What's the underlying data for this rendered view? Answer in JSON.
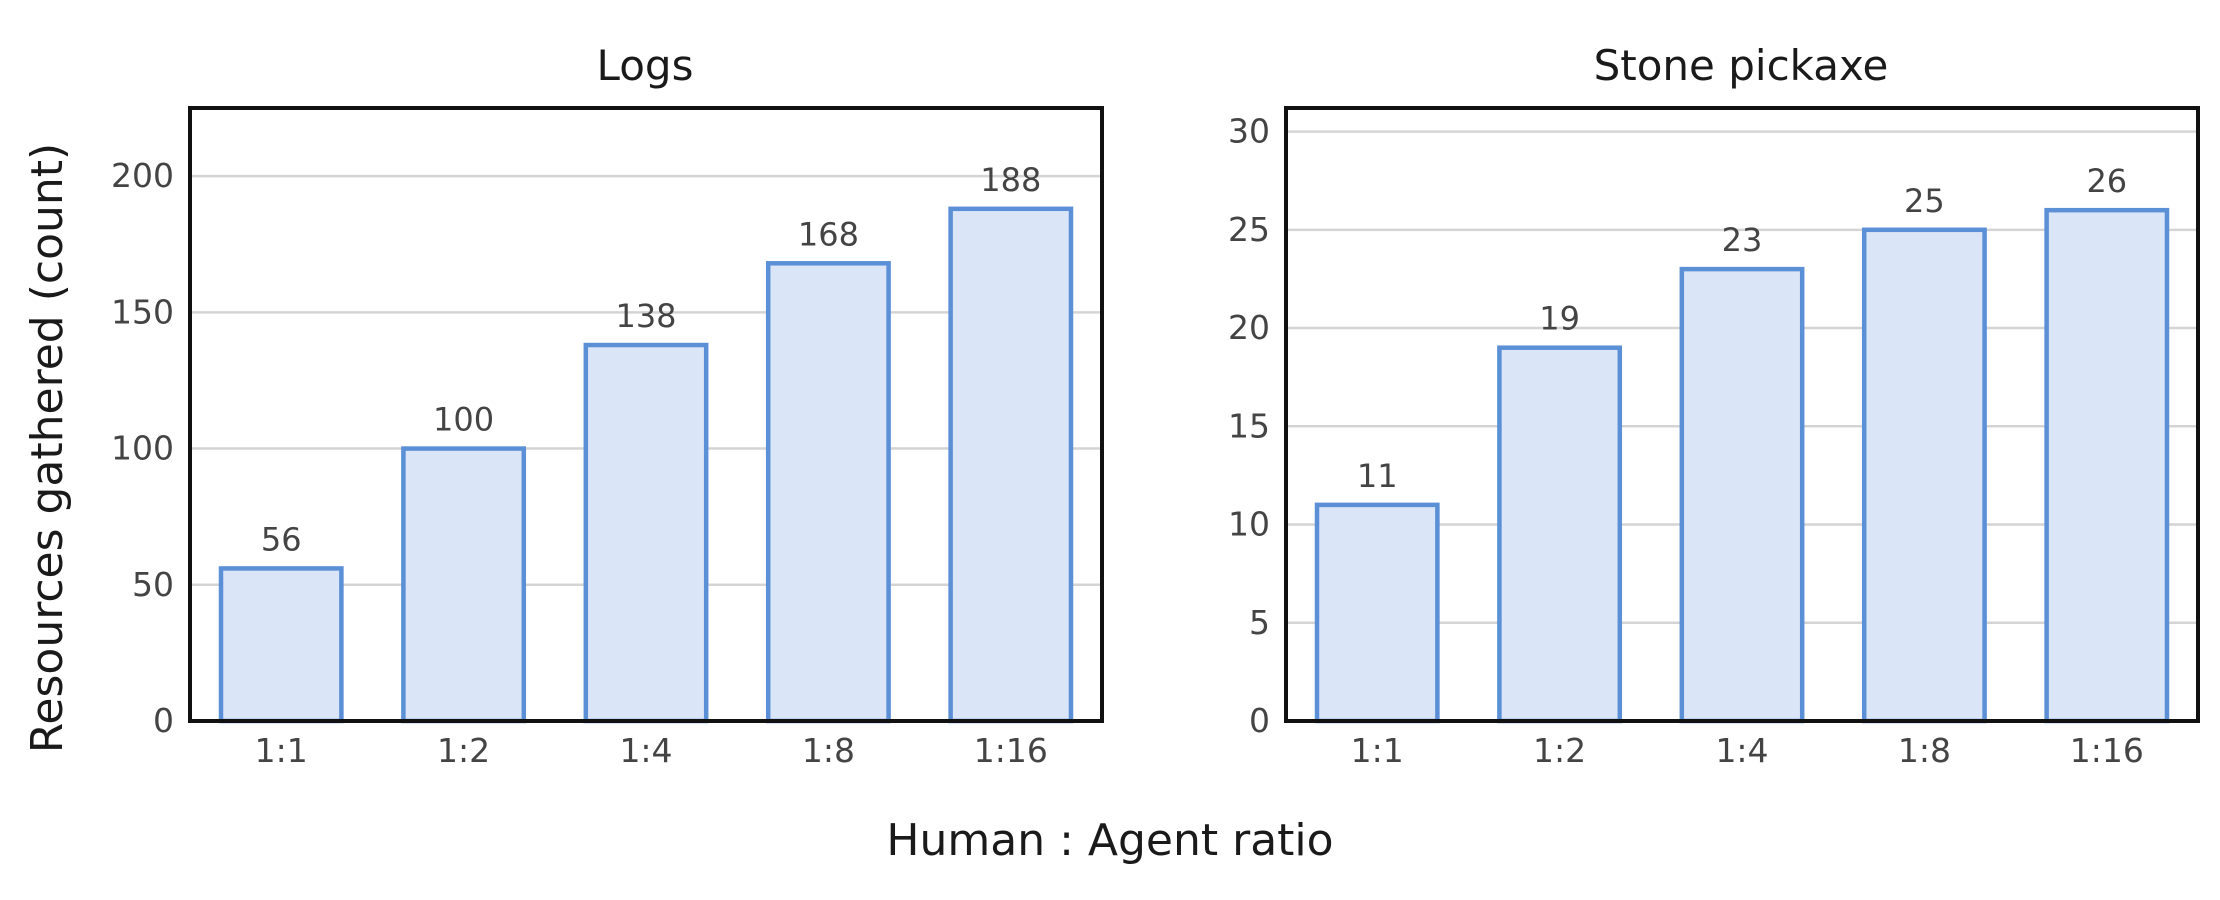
{
  "figure": {
    "ylabel": "Resources gathered (count)",
    "xlabel": "Human : Agent ratio",
    "bar_fill": "#dbe5f8",
    "bar_stroke": "#5b8fd6",
    "grid_color": "#d4d4d4"
  },
  "chart_data": [
    {
      "type": "bar",
      "title": "Logs",
      "categories": [
        "1:1",
        "1:2",
        "1:4",
        "1:8",
        "1:16"
      ],
      "values": [
        56,
        100,
        138,
        168,
        188
      ],
      "ylim": [
        0,
        225
      ],
      "yticks": [
        0,
        50,
        100,
        150,
        200
      ],
      "grid": true
    },
    {
      "type": "bar",
      "title": "Stone pickaxe",
      "categories": [
        "1:1",
        "1:2",
        "1:4",
        "1:8",
        "1:16"
      ],
      "values": [
        11,
        19,
        23,
        25,
        26
      ],
      "ylim": [
        0,
        31.2
      ],
      "yticks": [
        0,
        5,
        10,
        15,
        20,
        25,
        30
      ],
      "grid": true
    }
  ]
}
